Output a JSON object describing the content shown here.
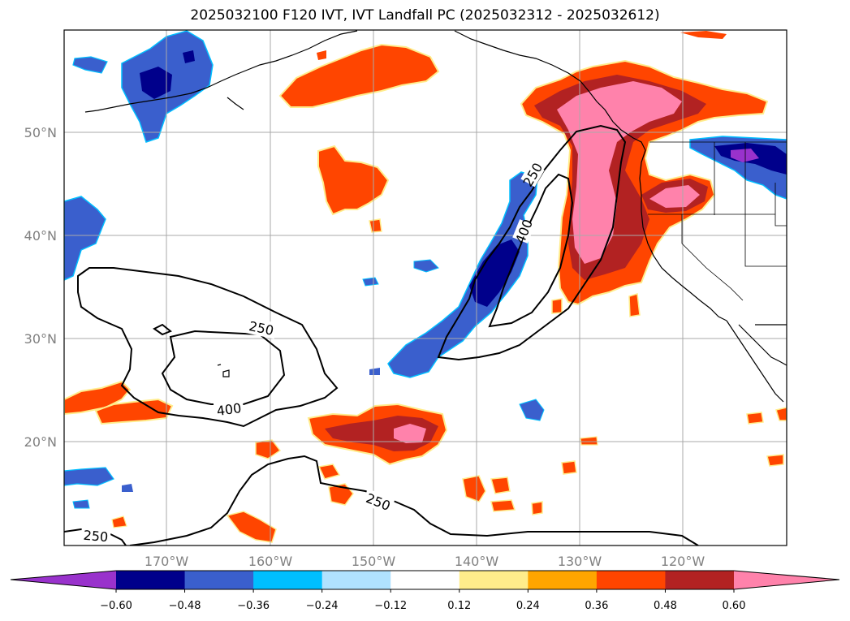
{
  "figure": {
    "title": "2025032100 F120 IVT, IVT Landfall PC (2025032312 - 2025032612)"
  },
  "map": {
    "lat_labels": [
      "50°N",
      "40°N",
      "30°N",
      "20°N"
    ],
    "lon_labels": [
      "170°W",
      "160°W",
      "150°W",
      "140°W",
      "130°W",
      "120°W"
    ],
    "ivt_contours": [
      {
        "label": "250"
      },
      {
        "label": "400"
      },
      {
        "label": "250"
      },
      {
        "label": "400"
      },
      {
        "label": "250"
      },
      {
        "label": "250"
      }
    ]
  },
  "colorbar": {
    "tick_labels": [
      "−0.60",
      "−0.48",
      "−0.36",
      "−0.24",
      "−0.12",
      "0.12",
      "0.24",
      "0.36",
      "0.48",
      "0.60"
    ],
    "colors": [
      "#9932cc",
      "#00008b",
      "#3a5fcd",
      "#00bfff",
      "#b0e2ff",
      "#ffffff",
      "#ffec8b",
      "#ffa500",
      "#ff4500",
      "#b22222",
      "#ff82ab"
    ]
  }
}
